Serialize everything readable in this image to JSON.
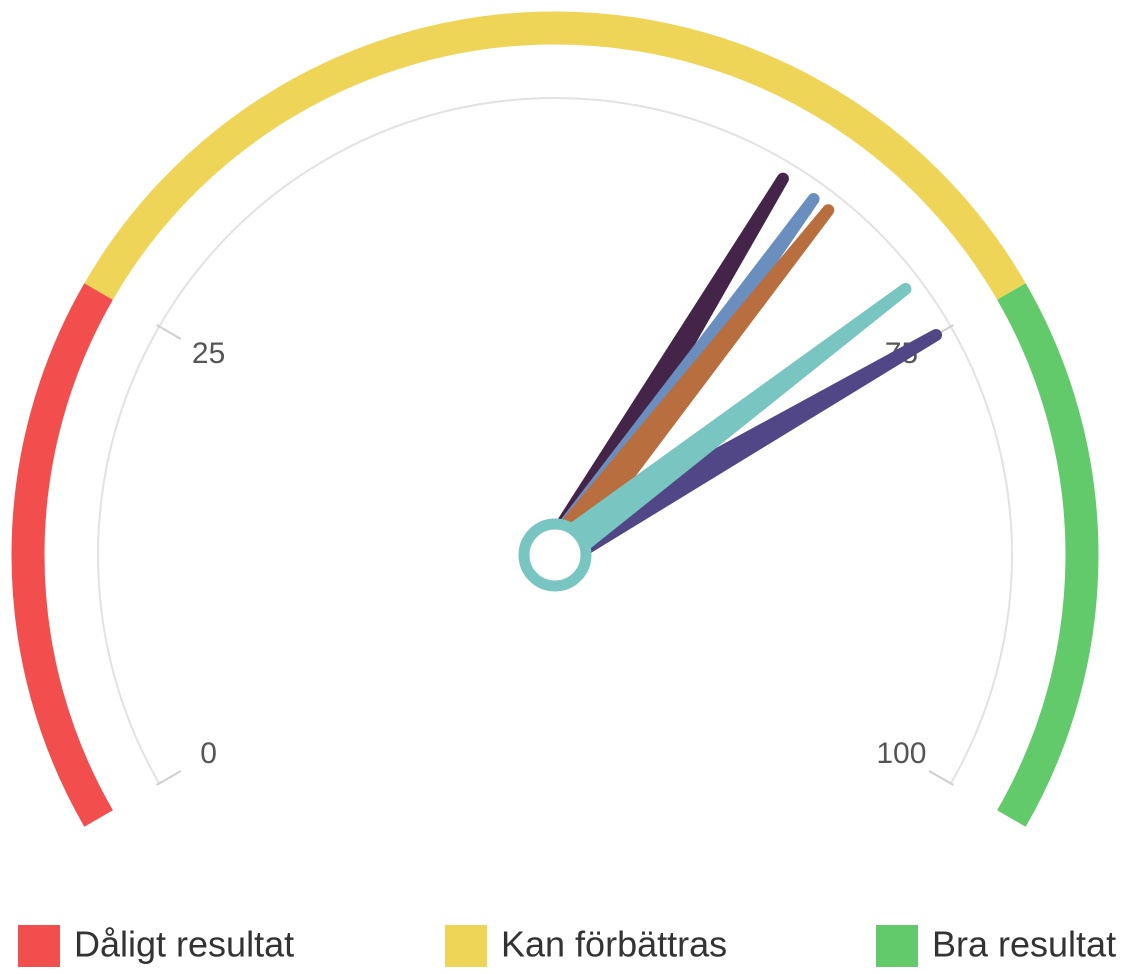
{
  "chart_data": {
    "type": "gauge",
    "ylim": [
      0,
      100
    ],
    "yticks": [
      0,
      25,
      75,
      100
    ],
    "bands": [
      {
        "label": "Dåligt resultat",
        "from": 0,
        "to": 25,
        "color": "#f24e4e"
      },
      {
        "label": "Kan förbättras",
        "from": 25,
        "to": 75,
        "color": "#eed557"
      },
      {
        "label": "Bra resultat",
        "from": 75,
        "to": 100,
        "color": "#62ca6a"
      }
    ],
    "series": [
      {
        "color": "#45244a",
        "values": [
          63
        ]
      },
      {
        "color": "#6a8fbf",
        "values": [
          65
        ]
      },
      {
        "color": "#b86e3e",
        "values": [
          66
        ]
      },
      {
        "color": "#524786",
        "values": [
          75
        ]
      },
      {
        "color": "#78c5c1",
        "values": [
          72
        ]
      }
    ]
  }
}
